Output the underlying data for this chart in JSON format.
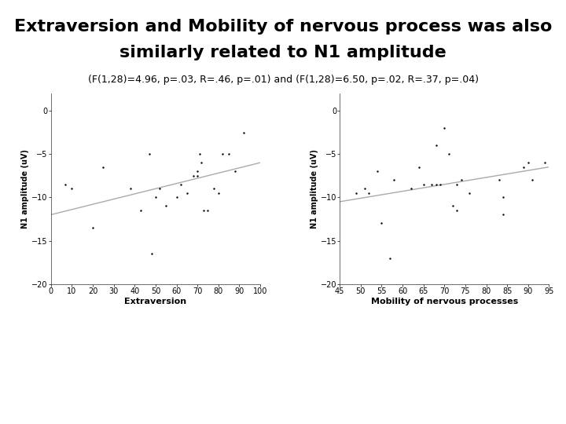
{
  "title_line1": "Extraversion and Mobility of nervous process was also",
  "title_line2": "similarly related to N1 amplitude",
  "subtitle": "(F(1,28)=4.96, p=.03, R=.46, p=.01) and (F(1,28)=6.50, p=.02, R=.37, p=.04)",
  "title_fontsize": 16,
  "subtitle_fontsize": 9,
  "background_color": "#ffffff",
  "plot1": {
    "xlabel": "Extraversion",
    "ylabel": "N1 amplitude (uV)",
    "xlim": [
      0,
      100
    ],
    "ylim": [
      -20,
      2
    ],
    "xticks": [
      0,
      10,
      20,
      30,
      40,
      50,
      60,
      70,
      80,
      90,
      100
    ],
    "yticks": [
      0,
      -5,
      -10,
      -15,
      -20
    ],
    "scatter_x": [
      7,
      10,
      20,
      25,
      38,
      43,
      47,
      48,
      50,
      52,
      55,
      60,
      62,
      65,
      68,
      70,
      70,
      71,
      72,
      73,
      75,
      78,
      80,
      82,
      85,
      88,
      92
    ],
    "scatter_y": [
      -8.5,
      -9,
      -13.5,
      -6.5,
      -9,
      -11.5,
      -5,
      -16.5,
      -10,
      -9,
      -11,
      -10,
      -8.5,
      -9.5,
      -7.5,
      -7.5,
      -7,
      -5,
      -6,
      -11.5,
      -11.5,
      -9,
      -9.5,
      -5,
      -5,
      -7,
      -2.5
    ],
    "line_x": [
      0,
      100
    ],
    "line_y": [
      -12,
      -6
    ],
    "line_color": "#aaaaaa",
    "marker_color": "#000000",
    "marker_size": 4
  },
  "plot2": {
    "xlabel": "Mobility of nervous processes",
    "ylabel": "N1 amplitude (uV)",
    "xlim": [
      45,
      95
    ],
    "ylim": [
      -20,
      2
    ],
    "xticks": [
      45,
      50,
      55,
      60,
      65,
      70,
      75,
      80,
      85,
      90,
      95
    ],
    "yticks": [
      0,
      -5,
      -10,
      -15,
      -20
    ],
    "scatter_x": [
      49,
      51,
      52,
      54,
      55,
      57,
      58,
      62,
      64,
      65,
      67,
      68,
      68,
      69,
      70,
      71,
      72,
      73,
      73,
      74,
      76,
      83,
      84,
      84,
      89,
      90,
      91,
      94
    ],
    "scatter_y": [
      -9.5,
      -9,
      -9.5,
      -7,
      -13,
      -17,
      -8,
      -9,
      -6.5,
      -8.5,
      -8.5,
      -4,
      -8.5,
      -8.5,
      -2,
      -5,
      -11,
      -11.5,
      -8.5,
      -8,
      -9.5,
      -8,
      -12,
      -10,
      -6.5,
      -6,
      -8,
      -6
    ],
    "line_x": [
      45,
      95
    ],
    "line_y": [
      -10.5,
      -6.5
    ],
    "line_color": "#aaaaaa",
    "marker_color": "#000000",
    "marker_size": 4
  }
}
